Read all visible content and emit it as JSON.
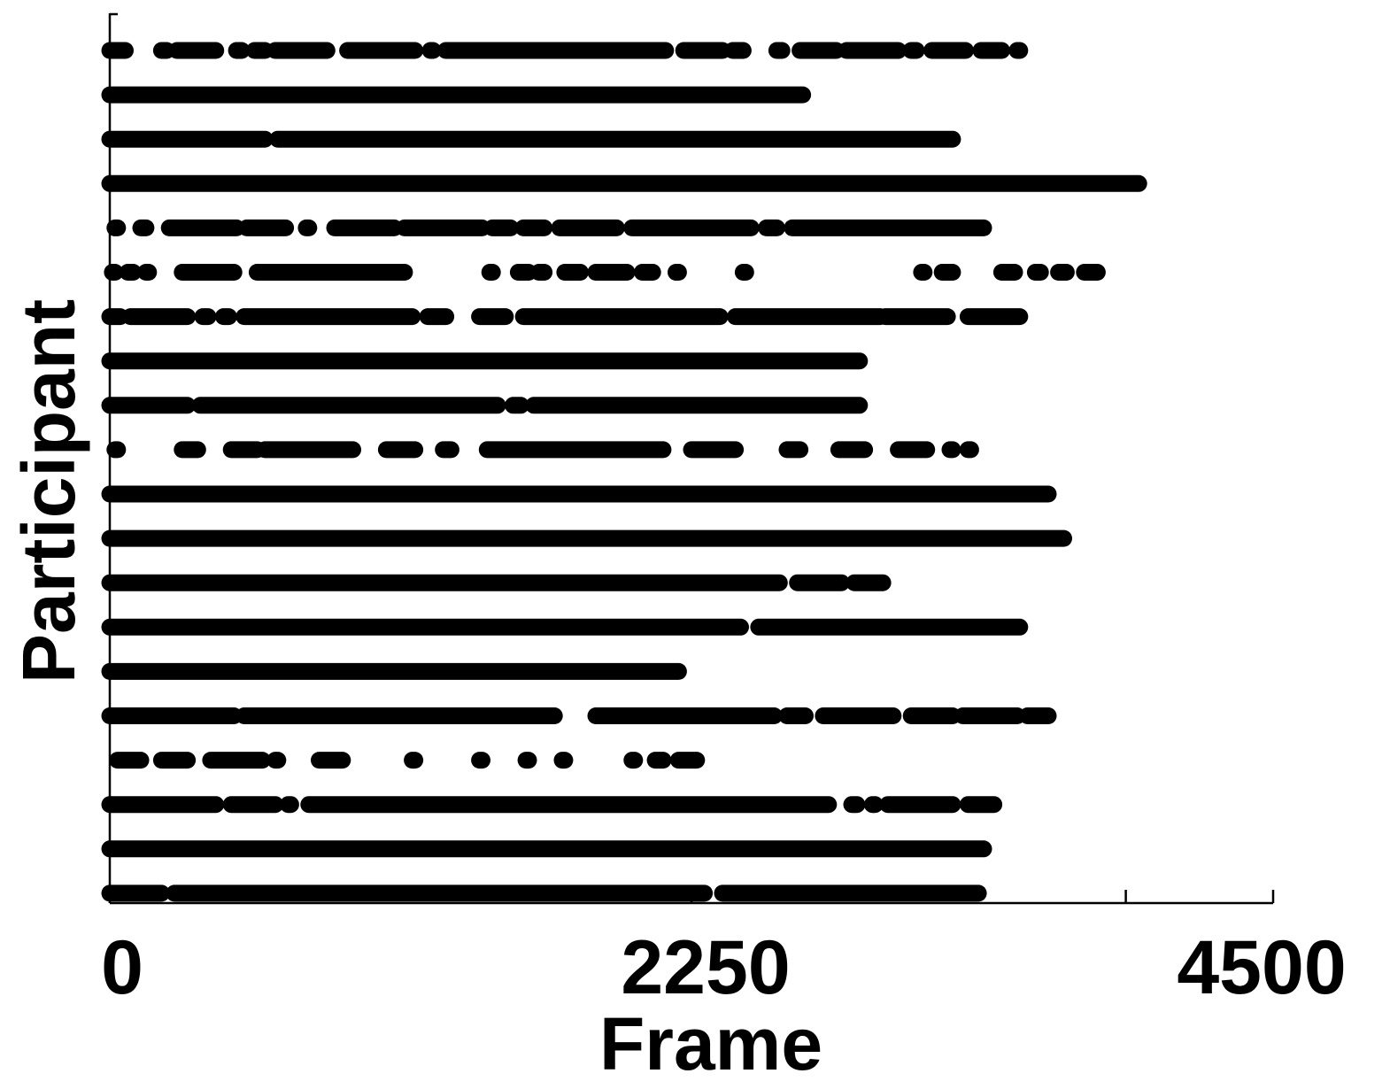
{
  "chart_data": {
    "type": "scatter",
    "title": "",
    "xlabel": "Frame",
    "ylabel": "Participant",
    "xlim": [
      0,
      4500
    ],
    "x_ticks": [
      "0",
      "2250",
      "4500"
    ],
    "grid": false,
    "legend": "none",
    "marker_color": "#000000",
    "participants": [
      {
        "segments": [
          [
            0,
            60
          ],
          [
            200,
            220
          ],
          [
            260,
            410
          ],
          [
            490,
            510
          ],
          [
            560,
            600
          ],
          [
            640,
            840
          ],
          [
            920,
            1180
          ],
          [
            1240,
            1250
          ],
          [
            1300,
            2150
          ],
          [
            2220,
            2370
          ],
          [
            2410,
            2450
          ],
          [
            2580,
            2600
          ],
          [
            2670,
            2810
          ],
          [
            2850,
            3050
          ],
          [
            3100,
            3120
          ],
          [
            3180,
            3310
          ],
          [
            3370,
            3450
          ],
          [
            3510,
            3520
          ]
        ]
      },
      {
        "segments": [
          [
            0,
            2680
          ]
        ]
      },
      {
        "segments": [
          [
            0,
            600
          ],
          [
            650,
            3260
          ]
        ]
      },
      {
        "segments": [
          [
            0,
            3980
          ]
        ]
      },
      {
        "segments": [
          [
            20,
            30
          ],
          [
            120,
            140
          ],
          [
            230,
            490
          ],
          [
            530,
            680
          ],
          [
            760,
            770
          ],
          [
            870,
            1100
          ],
          [
            1140,
            1440
          ],
          [
            1480,
            1550
          ],
          [
            1600,
            1680
          ],
          [
            1740,
            1960
          ],
          [
            2020,
            2480
          ],
          [
            2540,
            2580
          ],
          [
            2640,
            3380
          ]
        ]
      },
      {
        "segments": [
          [
            10,
            20
          ],
          [
            70,
            90
          ],
          [
            140,
            150
          ],
          [
            280,
            480
          ],
          [
            570,
            1140
          ],
          [
            1470,
            1480
          ],
          [
            1580,
            1620
          ],
          [
            1660,
            1680
          ],
          [
            1760,
            1820
          ],
          [
            1880,
            2000
          ],
          [
            2060,
            2100
          ],
          [
            2190,
            2200
          ],
          [
            2450,
            2460
          ],
          [
            3140,
            3150
          ],
          [
            3220,
            3260
          ],
          [
            3450,
            3500
          ],
          [
            3580,
            3600
          ],
          [
            3670,
            3700
          ],
          [
            3770,
            3820
          ]
        ]
      },
      {
        "segments": [
          [
            0,
            40
          ],
          [
            80,
            300
          ],
          [
            360,
            380
          ],
          [
            440,
            460
          ],
          [
            520,
            1170
          ],
          [
            1230,
            1300
          ],
          [
            1430,
            1530
          ],
          [
            1600,
            2360
          ],
          [
            2420,
            2980
          ],
          [
            3000,
            3240
          ],
          [
            3320,
            3520
          ]
        ]
      },
      {
        "segments": [
          [
            0,
            2900
          ]
        ]
      },
      {
        "segments": [
          [
            0,
            300
          ],
          [
            350,
            1500
          ],
          [
            1560,
            1590
          ],
          [
            1640,
            2900
          ]
        ]
      },
      {
        "segments": [
          [
            20,
            30
          ],
          [
            280,
            340
          ],
          [
            470,
            570
          ],
          [
            600,
            940
          ],
          [
            1070,
            1180
          ],
          [
            1290,
            1320
          ],
          [
            1460,
            2140
          ],
          [
            2250,
            2420
          ],
          [
            2620,
            2670
          ],
          [
            2820,
            2920
          ],
          [
            3050,
            3160
          ],
          [
            3250,
            3260
          ],
          [
            3330,
            3320
          ]
        ]
      },
      {
        "segments": [
          [
            0,
            3630
          ]
        ]
      },
      {
        "segments": [
          [
            0,
            3690
          ]
        ]
      },
      {
        "segments": [
          [
            0,
            2590
          ],
          [
            2660,
            2830
          ],
          [
            2880,
            2990
          ]
        ]
      },
      {
        "segments": [
          [
            0,
            2440
          ],
          [
            2510,
            3520
          ]
        ]
      },
      {
        "segments": [
          [
            0,
            2200
          ]
        ]
      },
      {
        "segments": [
          [
            0,
            480
          ],
          [
            520,
            1720
          ],
          [
            1880,
            2570
          ],
          [
            2620,
            2690
          ],
          [
            2760,
            3030
          ],
          [
            3100,
            3260
          ],
          [
            3300,
            3510
          ],
          [
            3550,
            3630
          ]
        ]
      },
      {
        "segments": [
          [
            30,
            120
          ],
          [
            200,
            300
          ],
          [
            390,
            590
          ],
          [
            640,
            650
          ],
          [
            810,
            900
          ],
          [
            1170,
            1180
          ],
          [
            1430,
            1440
          ],
          [
            1610,
            1620
          ],
          [
            1750,
            1760
          ],
          [
            2020,
            2030
          ],
          [
            2110,
            2140
          ],
          [
            2200,
            2270
          ]
        ]
      },
      {
        "segments": [
          [
            0,
            410
          ],
          [
            470,
            640
          ],
          [
            690,
            700
          ],
          [
            770,
            2780
          ],
          [
            2870,
            2890
          ],
          [
            2950,
            2960
          ],
          [
            3010,
            3260
          ],
          [
            3320,
            3420
          ]
        ]
      },
      {
        "segments": [
          [
            0,
            3380
          ]
        ]
      },
      {
        "segments": [
          [
            0,
            200
          ],
          [
            250,
            2300
          ],
          [
            2370,
            3360
          ]
        ]
      }
    ]
  }
}
